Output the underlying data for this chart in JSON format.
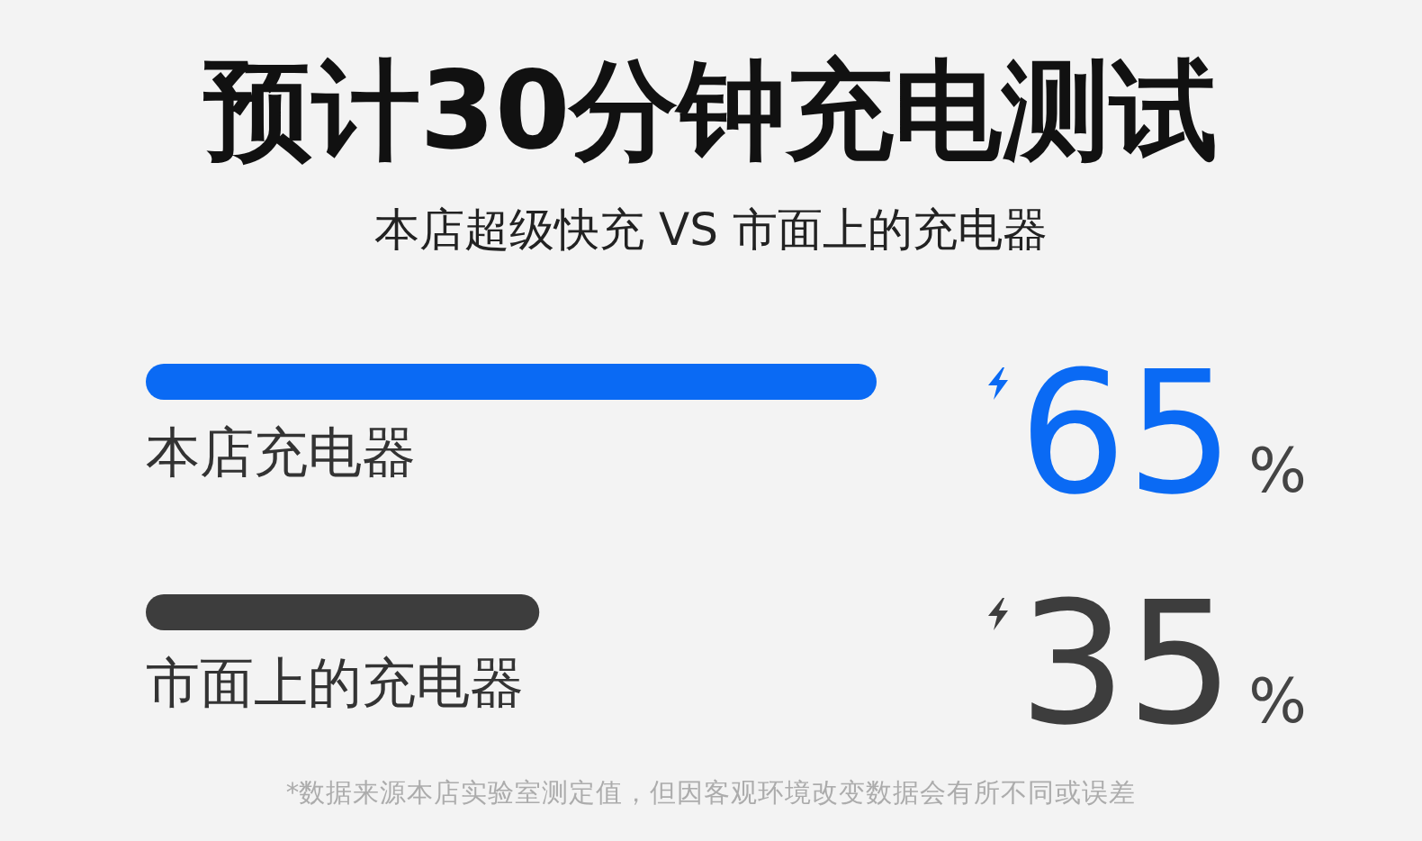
{
  "chart_data": {
    "type": "bar",
    "orientation": "horizontal",
    "title": "预计30分钟充电测试",
    "subtitle": "本店超级快充 VS 市面上的充电器",
    "categories": [
      "本店充电器",
      "市面上的充电器"
    ],
    "values": [
      65,
      35
    ],
    "colors": [
      "#0a6af4",
      "#3d3d3d"
    ],
    "value_labels": [
      "65%",
      "35%"
    ],
    "tick_labels": "y",
    "annotations": [
      "*数据来源本店实验室测定值，但因客观环境改变数据会有所不同或误差"
    ]
  }
}
